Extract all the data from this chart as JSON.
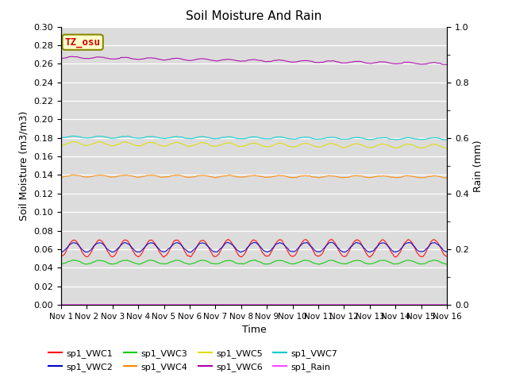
{
  "title": "Soil Moisture And Rain",
  "xlabel": "Time",
  "ylabel_left": "Soil Moisture (m3/m3)",
  "ylabel_right": "Rain (mm)",
  "ylim_left": [
    0.0,
    0.3
  ],
  "ylim_right": [
    0.0,
    1.0
  ],
  "yticks_left": [
    0.0,
    0.02,
    0.04,
    0.06,
    0.08,
    0.1,
    0.12,
    0.14,
    0.16,
    0.18,
    0.2,
    0.22,
    0.24,
    0.26,
    0.28,
    0.3
  ],
  "yticks_right": [
    0.0,
    0.2,
    0.4,
    0.6,
    0.8,
    1.0
  ],
  "background_color": "#dcdcdc",
  "annotation_text": "TZ_osu",
  "annotation_color": "#cc0000",
  "annotation_bg": "#ffffcc",
  "annotation_border": "#888800",
  "series_order": [
    "sp1_VWC1",
    "sp1_VWC2",
    "sp1_VWC3",
    "sp1_VWC4",
    "sp1_VWC5",
    "sp1_VWC6",
    "sp1_VWC7",
    "sp1_Rain"
  ],
  "series": {
    "sp1_VWC1": {
      "color": "#ff0000",
      "base": 0.061,
      "amp": 0.009,
      "trend": 0.0,
      "noise": 0.0008,
      "period": 1.0,
      "axis": "left"
    },
    "sp1_VWC2": {
      "color": "#0000cc",
      "base": 0.062,
      "amp": 0.005,
      "trend": 0.0,
      "noise": 0.0006,
      "period": 1.0,
      "axis": "left"
    },
    "sp1_VWC3": {
      "color": "#00cc00",
      "base": 0.046,
      "amp": 0.002,
      "trend": 0.0,
      "noise": 0.0005,
      "period": 1.0,
      "axis": "left"
    },
    "sp1_VWC4": {
      "color": "#ff8800",
      "base": 0.139,
      "amp": 0.001,
      "trend": -0.001,
      "noise": 0.0005,
      "period": 1.0,
      "axis": "left"
    },
    "sp1_VWC5": {
      "color": "#dddd00",
      "base": 0.174,
      "amp": 0.002,
      "trend": -0.003,
      "noise": 0.0005,
      "period": 1.0,
      "axis": "left"
    },
    "sp1_VWC6": {
      "color": "#aa00aa",
      "base": 0.267,
      "amp": 0.001,
      "trend": -0.007,
      "noise": 0.0004,
      "period": 1.0,
      "axis": "left"
    },
    "sp1_VWC7": {
      "color": "#00cccc",
      "base": 0.181,
      "amp": 0.001,
      "trend": -0.002,
      "noise": 0.0004,
      "period": 1.0,
      "axis": "left"
    },
    "sp1_Rain": {
      "color": "#ff44ff",
      "base": 0.0003,
      "amp": 0.0,
      "trend": 0.0,
      "noise": 0.0,
      "period": 1.0,
      "axis": "right"
    }
  },
  "xtick_labels": [
    "Nov 1",
    "Nov 2",
    "Nov 3",
    "Nov 4",
    "Nov 5",
    "Nov 6",
    "Nov 7",
    "Nov 8",
    "Nov 9",
    "Nov 10",
    "Nov 11",
    "Nov 12",
    "Nov 13",
    "Nov 14",
    "Nov 15",
    "Nov 16"
  ],
  "legend_entries": [
    {
      "label": "sp1_VWC1",
      "color": "#ff0000"
    },
    {
      "label": "sp1_VWC2",
      "color": "#0000cc"
    },
    {
      "label": "sp1_VWC3",
      "color": "#00cc00"
    },
    {
      "label": "sp1_VWC4",
      "color": "#ff8800"
    },
    {
      "label": "sp1_VWC5",
      "color": "#dddd00"
    },
    {
      "label": "sp1_VWC6",
      "color": "#aa00aa"
    },
    {
      "label": "sp1_VWC7",
      "color": "#00cccc"
    },
    {
      "label": "sp1_Rain",
      "color": "#ff44ff"
    }
  ]
}
